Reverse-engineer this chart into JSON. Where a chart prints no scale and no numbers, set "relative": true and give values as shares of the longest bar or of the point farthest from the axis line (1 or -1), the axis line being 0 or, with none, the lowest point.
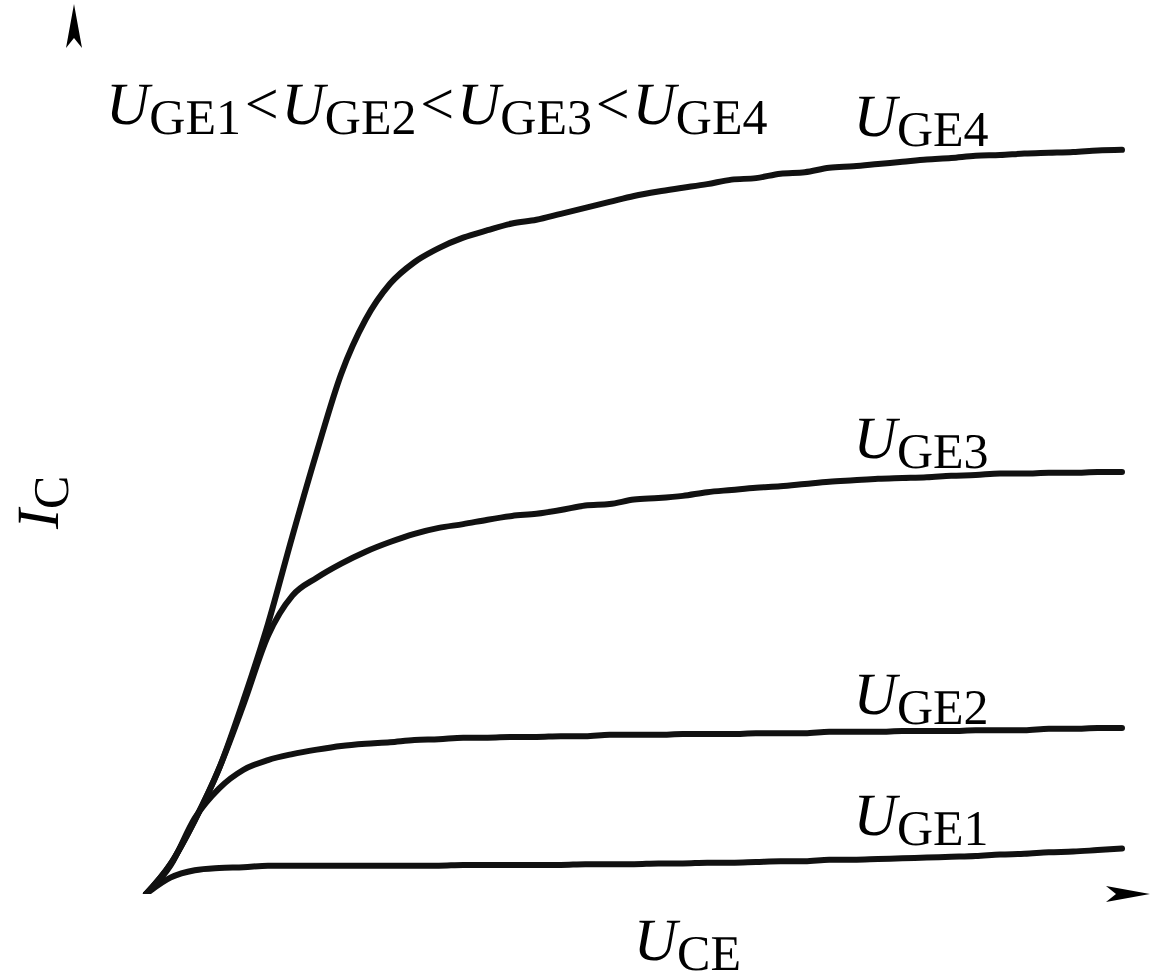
{
  "chart_data": {
    "type": "line",
    "relative": true,
    "xlabel": "U$_{CE}$",
    "ylabel": "I$_{C}$",
    "annotations": [
      "U$_{GE1}$<U$_{GE2}$<U$_{GE3}$<U$_{GE4}$"
    ],
    "categories": [
      null,
      null,
      null,
      null,
      null,
      null,
      null,
      null,
      null,
      null,
      null,
      null,
      null,
      null,
      null,
      null,
      null,
      null,
      null,
      null,
      null,
      null,
      null,
      null,
      null,
      null,
      null,
      null,
      null,
      null,
      null,
      null,
      null,
      null,
      null,
      null,
      null,
      null,
      null,
      null,
      null
    ],
    "series": [
      {
        "name": "U$_{GE1}$",
        "color": "#111111",
        "values": [
          0,
          0.022,
          0.032,
          0.035,
          0.036,
          0.038,
          0.038,
          0.038,
          0.038,
          0.038,
          0.038,
          0.038,
          0.038,
          0.039,
          0.039,
          0.039,
          0.039,
          0.039,
          0.04,
          0.04,
          0.04,
          0.041,
          0.041,
          0.042,
          0.042,
          0.043,
          0.044,
          0.044,
          0.046,
          0.046,
          0.047,
          0.048,
          0.049,
          0.05,
          0.051,
          0.053,
          0.054,
          0.056,
          0.057,
          0.059,
          0.061
        ]
      },
      {
        "name": "U$_{GE2}$",
        "color": "#111111",
        "values": [
          0,
          0.038,
          0.102,
          0.142,
          0.167,
          0.18,
          0.188,
          0.194,
          0.199,
          0.202,
          0.204,
          0.207,
          0.208,
          0.21,
          0.21,
          0.211,
          0.211,
          0.212,
          0.212,
          0.214,
          0.214,
          0.214,
          0.215,
          0.215,
          0.215,
          0.216,
          0.216,
          0.216,
          0.218,
          0.218,
          0.218,
          0.219,
          0.219,
          0.219,
          0.22,
          0.22,
          0.22,
          0.222,
          0.222,
          0.223,
          0.223
        ]
      },
      {
        "name": "U$_{GE3}$",
        "color": "#111111",
        "values": [
          0,
          0.04,
          0.099,
          0.169,
          0.255,
          0.347,
          0.401,
          0.425,
          0.444,
          0.46,
          0.473,
          0.484,
          0.492,
          0.497,
          0.503,
          0.508,
          0.511,
          0.516,
          0.522,
          0.524,
          0.53,
          0.532,
          0.535,
          0.54,
          0.543,
          0.546,
          0.548,
          0.551,
          0.554,
          0.556,
          0.558,
          0.559,
          0.56,
          0.562,
          0.563,
          0.565,
          0.565,
          0.566,
          0.566,
          0.567,
          0.567
        ]
      },
      {
        "name": "U$_{GE4}$",
        "color": "#111111",
        "values": [
          0,
          0.04,
          0.099,
          0.169,
          0.261,
          0.363,
          0.481,
          0.594,
          0.699,
          0.772,
          0.82,
          0.849,
          0.868,
          0.882,
          0.892,
          0.901,
          0.906,
          0.914,
          0.922,
          0.93,
          0.938,
          0.944,
          0.949,
          0.954,
          0.96,
          0.962,
          0.968,
          0.97,
          0.976,
          0.978,
          0.981,
          0.984,
          0.987,
          0.989,
          0.992,
          0.993,
          0.995,
          0.996,
          0.997,
          0.999,
          1
        ]
      }
    ]
  }
}
